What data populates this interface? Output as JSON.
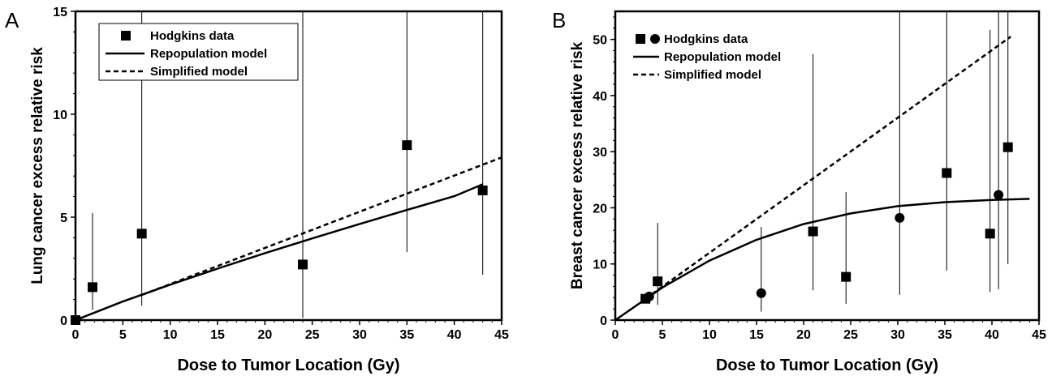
{
  "chart_data": [
    {
      "type": "scatter",
      "panel_label": "A",
      "xlabel": "Dose to Tumor Location (Gy)",
      "ylabel": "Lung cancer excess relative risk",
      "xlim": [
        0,
        45
      ],
      "ylim": [
        0,
        15
      ],
      "x_ticks": [
        "0",
        "5",
        "10",
        "15",
        "20",
        "25",
        "30",
        "35",
        "40",
        "45"
      ],
      "y_ticks": [
        "0",
        "5",
        "10",
        "15"
      ],
      "grid": false,
      "legend_position": "top-left",
      "legend": [
        {
          "label": "Hodgkins data",
          "marker": "square"
        },
        {
          "label": "Repopulation model",
          "line": "solid"
        },
        {
          "label": "Simplified model",
          "line": "dashed"
        }
      ],
      "points": [
        {
          "x": 0.0,
          "y": 0.0,
          "lo": 0.0,
          "hi": 0.0,
          "marker": "square"
        },
        {
          "x": 1.8,
          "y": 1.6,
          "lo": 0.5,
          "hi": 5.2,
          "marker": "square"
        },
        {
          "x": 7.0,
          "y": 4.2,
          "lo": 0.7,
          "hi": 15.0,
          "marker": "square"
        },
        {
          "x": 24.0,
          "y": 2.7,
          "lo": 0.1,
          "hi": 15.0,
          "marker": "square"
        },
        {
          "x": 35.0,
          "y": 8.5,
          "lo": 3.3,
          "hi": 15.0,
          "marker": "square"
        },
        {
          "x": 43.0,
          "y": 6.3,
          "lo": 2.2,
          "hi": 15.0,
          "marker": "square"
        }
      ],
      "series": [
        {
          "label": "Repopulation model",
          "style": "solid",
          "x": [
            0,
            5,
            10,
            15,
            20,
            25,
            30,
            35,
            40,
            43
          ],
          "y": [
            0,
            0.9,
            1.72,
            2.5,
            3.25,
            3.97,
            4.67,
            5.35,
            6.02,
            6.6
          ]
        },
        {
          "label": "Simplified model",
          "style": "dashed",
          "x": [
            7,
            45
          ],
          "y": [
            1.22,
            7.9
          ]
        }
      ]
    },
    {
      "type": "scatter",
      "panel_label": "B",
      "xlabel": "Dose to Tumor Location (Gy)",
      "ylabel": "Breast cancer excess relative risk",
      "xlim": [
        0,
        45
      ],
      "ylim": [
        0,
        55
      ],
      "x_ticks": [
        "0",
        "5",
        "10",
        "15",
        "20",
        "25",
        "30",
        "35",
        "40",
        "45"
      ],
      "y_ticks": [
        "0",
        "10",
        "20",
        "30",
        "40",
        "50"
      ],
      "grid": false,
      "legend_position": "top-left",
      "legend": [
        {
          "label": "Hodgkins data",
          "marker": "square+circle"
        },
        {
          "label": "Repopulation model",
          "line": "solid"
        },
        {
          "label": "Simplified model",
          "line": "dashed"
        }
      ],
      "points": [
        {
          "x": 3.2,
          "y": 3.8,
          "lo": 3.8,
          "hi": 3.8,
          "marker": "square"
        },
        {
          "x": 3.6,
          "y": 4.2,
          "lo": 4.2,
          "hi": 4.2,
          "marker": "circle"
        },
        {
          "x": 4.5,
          "y": 6.9,
          "lo": 2.7,
          "hi": 17.3,
          "marker": "square"
        },
        {
          "x": 15.5,
          "y": 4.8,
          "lo": 1.5,
          "hi": 16.6,
          "marker": "circle"
        },
        {
          "x": 21.0,
          "y": 15.8,
          "lo": 5.3,
          "hi": 47.4,
          "marker": "square"
        },
        {
          "x": 24.5,
          "y": 7.7,
          "lo": 2.9,
          "hi": 22.8,
          "marker": "square"
        },
        {
          "x": 30.2,
          "y": 18.2,
          "lo": 4.5,
          "hi": 55.0,
          "marker": "circle"
        },
        {
          "x": 35.2,
          "y": 26.2,
          "lo": 8.8,
          "hi": 55.0,
          "marker": "square"
        },
        {
          "x": 39.8,
          "y": 15.4,
          "lo": 5.0,
          "hi": 51.7,
          "marker": "square"
        },
        {
          "x": 40.7,
          "y": 22.3,
          "lo": 5.5,
          "hi": 55.0,
          "marker": "circle"
        },
        {
          "x": 41.7,
          "y": 30.8,
          "lo": 10.0,
          "hi": 55.0,
          "marker": "square"
        }
      ],
      "series": [
        {
          "label": "Repopulation model",
          "style": "solid",
          "x": [
            0,
            5,
            10,
            15,
            20,
            25,
            30,
            35,
            40,
            44
          ],
          "y": [
            0,
            5.8,
            10.6,
            14.3,
            17.1,
            19.0,
            20.3,
            21.0,
            21.4,
            21.6
          ]
        },
        {
          "label": "Simplified model",
          "style": "dashed",
          "x": [
            3.2,
            42
          ],
          "y": [
            3.8,
            50.5
          ]
        }
      ]
    }
  ]
}
